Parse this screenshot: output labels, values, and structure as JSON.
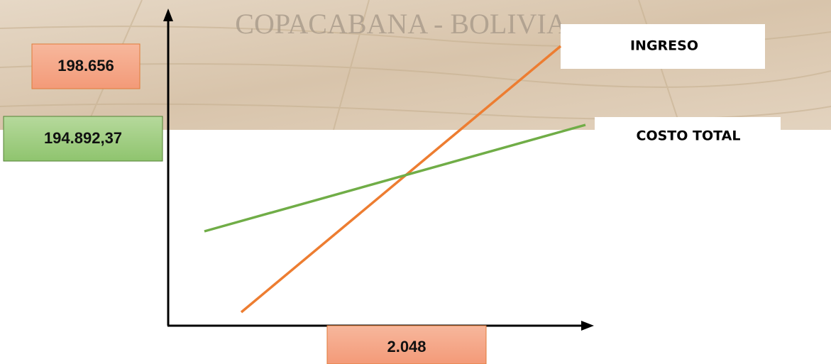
{
  "background_text": "COPACABANA - BOLIVIA",
  "y_labels": [
    "198.656",
    "194.892,37"
  ],
  "x_label": "2.048",
  "lines": [
    {
      "label": "INGRESO"
    },
    {
      "label": "COSTO TOTAL"
    }
  ]
}
